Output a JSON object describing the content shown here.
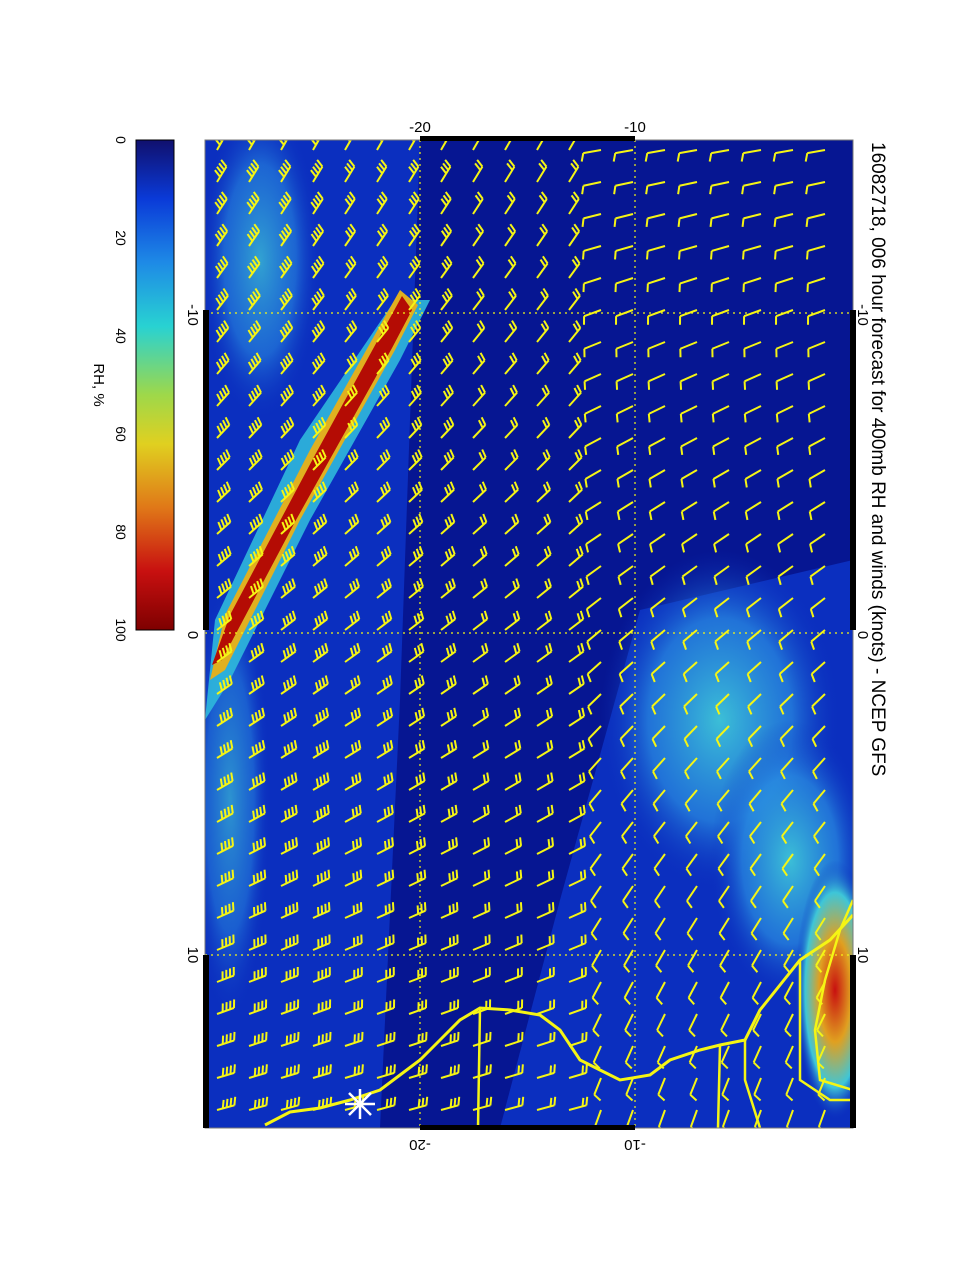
{
  "title": "16082718, 006 hour forecast for 400mb RH and winds (knots) - NCEP GFS",
  "colorbar": {
    "label": "RH, %",
    "ticks": [
      "0",
      "20",
      "40",
      "60",
      "80",
      "100"
    ],
    "stops": [
      "#10106e",
      "#0a3ad8",
      "#1e8ae6",
      "#28d2d2",
      "#9ed84a",
      "#e0d020",
      "#e07818",
      "#c81010",
      "#7e0000"
    ]
  },
  "axes": {
    "left_ticks": [
      "-10",
      "0",
      "10"
    ],
    "right_ticks": [
      "-10",
      "0",
      "10"
    ],
    "top_ticks": [
      "-20",
      "-10"
    ],
    "bottom_ticks": [
      "-20",
      "-10"
    ]
  },
  "colors": {
    "ocean_low_rh": "#0b2fbf",
    "dry_deep": "#06128a",
    "moist_band": "#b40c04",
    "wind_barbs": "#f5f514",
    "coastline": "#f5f514",
    "grid": "#f5f514"
  },
  "marker": {
    "icon": "white-star-icon"
  }
}
